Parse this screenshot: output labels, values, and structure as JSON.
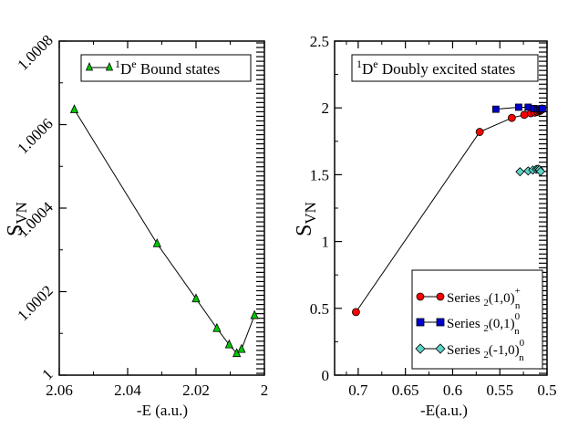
{
  "chart_data": [
    {
      "type": "line",
      "title": "",
      "xlabel": "-E (a.u.)",
      "ylabel_main": "S",
      "ylabel_sub": "VN",
      "xlim": [
        2.06,
        2.0
      ],
      "ylim": [
        1.0,
        1.0008
      ],
      "xticks": [
        {
          "v": 2.06,
          "label": "2.06"
        },
        {
          "v": 2.04,
          "label": "2.04"
        },
        {
          "v": 2.02,
          "label": "2.02"
        },
        {
          "v": 2.0,
          "label": "2"
        }
      ],
      "yticks": [
        {
          "v": 1.0,
          "label": "1"
        },
        {
          "v": 1.0002,
          "label": "1.0002"
        },
        {
          "v": 1.0004,
          "label": "1.0004"
        },
        {
          "v": 1.0006,
          "label": "1.0006"
        },
        {
          "v": 1.0008,
          "label": "1.0008"
        }
      ],
      "legend": {
        "position": "top-right",
        "sup": "1",
        "main": "D",
        "sup2": "e",
        "rest": " Bound states"
      },
      "series": [
        {
          "name": "1De Bound states",
          "marker": "triangle",
          "color": "#00c800",
          "x": [
            2.0556,
            2.0314,
            2.02,
            2.0139,
            2.0103,
            2.0081,
            2.0067,
            2.0029
          ],
          "y": [
            1.000636,
            1.000315,
            1.000183,
            1.000112,
            1.000073,
            1.000052,
            1.000062,
            1.000143
          ]
        }
      ]
    },
    {
      "type": "line",
      "title": "",
      "xlabel": "-E(a.u.)",
      "ylabel_main": "S",
      "ylabel_sub": "VN",
      "xlim": [
        0.725,
        0.5
      ],
      "ylim": [
        0,
        2.5
      ],
      "xticks": [
        {
          "v": 0.7,
          "label": "0.7"
        },
        {
          "v": 0.65,
          "label": "0.65"
        },
        {
          "v": 0.6,
          "label": "0.6"
        },
        {
          "v": 0.55,
          "label": "0.55"
        },
        {
          "v": 0.5,
          "label": "0.5"
        }
      ],
      "yticks": [
        {
          "v": 0,
          "label": "0"
        },
        {
          "v": 0.5,
          "label": "0.5"
        },
        {
          "v": 1,
          "label": "1"
        },
        {
          "v": 1.5,
          "label": "1.5"
        },
        {
          "v": 2,
          "label": "2"
        },
        {
          "v": 2.5,
          "label": "2.5"
        }
      ],
      "legend_top": {
        "position": "top-right",
        "sup": "1",
        "main": "D",
        "sup2": "e",
        "rest": " Doubly excited states"
      },
      "legend_bottom": {
        "position": "bottom-right",
        "entries": [
          {
            "prefix": "Series ",
            "sub": "2",
            "mid": "(1,0)",
            "sup": "+",
            "sub2": "n"
          },
          {
            "prefix": "Series ",
            "sub": "2",
            "mid": "(0,1)",
            "sup": "0",
            "sub2": "n"
          },
          {
            "prefix": "Series ",
            "sub": "2",
            "mid": "(-1,0)",
            "sup": "0",
            "sub2": "n"
          }
        ]
      },
      "series": [
        {
          "name": "Series 2(1,0)+n",
          "marker": "circle",
          "color": "#ff0000",
          "x": [
            0.7024,
            0.5713,
            0.5373,
            0.5241,
            0.5171,
            0.5129,
            0.5101,
            0.5083,
            0.507,
            0.506,
            0.5052
          ],
          "y": [
            0.472,
            1.82,
            1.925,
            1.948,
            1.96,
            1.965,
            1.97,
            1.975,
            1.98,
            1.985,
            1.995
          ]
        },
        {
          "name": "Series 2(0,1)0n",
          "marker": "square",
          "color": "#0000cc",
          "x": [
            0.5542,
            0.53,
            0.52,
            0.514,
            0.51,
            0.5075,
            0.506,
            0.505
          ],
          "y": [
            1.99,
            2.005,
            2.005,
            1.995,
            1.992,
            1.99,
            1.992,
            1.995
          ]
        },
        {
          "name": "Series 2(-1,0)0n",
          "marker": "diamond",
          "color": "#5fd3c8",
          "x": [
            0.5286,
            0.52,
            0.515,
            0.5115,
            0.5095,
            0.508,
            0.5068
          ],
          "y": [
            1.522,
            1.528,
            1.535,
            1.54,
            1.542,
            1.538,
            1.524
          ]
        }
      ]
    }
  ]
}
